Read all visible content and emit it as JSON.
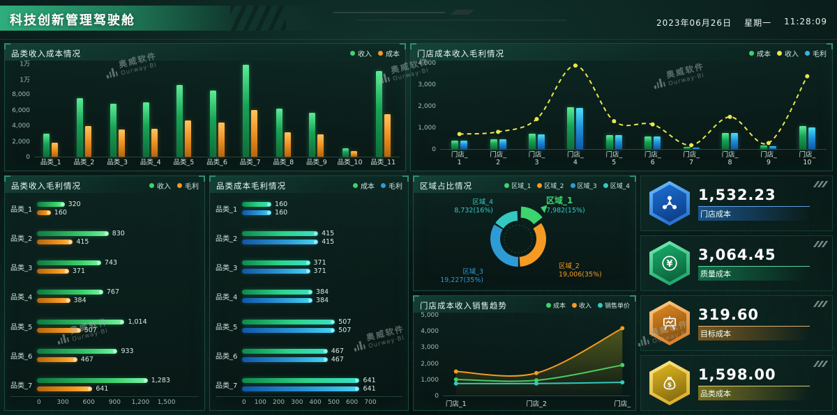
{
  "header": {
    "title": "科技创新管理驾驶舱",
    "date": "2023年06月26日",
    "weekday": "星期一",
    "time": "11:28:09"
  },
  "watermark": {
    "cn": "奥威软件",
    "en": "Ourway·BI"
  },
  "kpis": [
    {
      "value": "1,532.23",
      "label": "门店成本",
      "icon": "network-icon",
      "accent": "#2f8fe8"
    },
    {
      "value": "3,064.45",
      "label": "质量成本",
      "icon": "yen-icon",
      "accent": "#2bd488"
    },
    {
      "value": "319.60",
      "label": "目标成本",
      "icon": "easel-icon",
      "accent": "#f59a3c"
    },
    {
      "value": "1,598.00",
      "label": "品类成本",
      "icon": "moneybag-icon",
      "accent": "#f0cf3a"
    }
  ],
  "chart_data": [
    {
      "id": "category-income-cost",
      "panel_title": "品类收入成本情况",
      "type": "bar",
      "legend": [
        "收入",
        "成本"
      ],
      "legend_colors": [
        "#3bd46f",
        "#f59a23"
      ],
      "categories": [
        "品类_1",
        "品类_2",
        "品类_3",
        "品类_4",
        "品类_5",
        "品类_6",
        "品类_7",
        "品类_8",
        "品类_9",
        "品类_10",
        "品类_11"
      ],
      "series": [
        {
          "name": "收入",
          "color_key": "green",
          "values": [
            3000,
            7500,
            6800,
            7000,
            9200,
            8500,
            11800,
            6200,
            5600,
            1100,
            11000
          ]
        },
        {
          "name": "成本",
          "color_key": "orange",
          "values": [
            1800,
            3900,
            3500,
            3600,
            4700,
            4400,
            6000,
            3100,
            2900,
            700,
            5500
          ]
        }
      ],
      "ylim": [
        0,
        12000
      ],
      "ytick_labels": [
        "0",
        "2,000",
        "4,000",
        "6,000",
        "8,000",
        "1万",
        "1万"
      ]
    },
    {
      "id": "store-cost-income-profit",
      "panel_title": "门店成本收入毛利情况",
      "type": "bar-line",
      "legend": [
        "成本",
        "收入",
        "毛利"
      ],
      "legend_colors": [
        "#3bd46f",
        "#e9e94f",
        "#35b6e0"
      ],
      "categories": [
        "门店_1",
        "门店_2",
        "门店_3",
        "门店_4",
        "门店_5",
        "门店_6",
        "门店_7",
        "门店_8",
        "门店_9",
        "门店_10"
      ],
      "series": [
        {
          "name": "成本",
          "color_key": "green",
          "values": [
            400,
            460,
            700,
            1950,
            660,
            600,
            100,
            760,
            160,
            1060
          ]
        },
        {
          "name": "毛利",
          "color_key": "blue",
          "values": [
            380,
            440,
            680,
            1920,
            640,
            580,
            80,
            740,
            140,
            1000
          ]
        }
      ],
      "line_series": {
        "name": "收入",
        "color": "#e9e94f",
        "values": [
          700,
          800,
          1400,
          3900,
          1300,
          1150,
          180,
          1500,
          280,
          3400
        ]
      },
      "ylim": [
        0,
        4000
      ],
      "ytick_labels": [
        "0",
        "1,000",
        "2,000",
        "3,000",
        "4,000"
      ]
    },
    {
      "id": "category-income-profit",
      "panel_title": "品类收入毛利情况",
      "type": "hbar",
      "legend": [
        "收入",
        "毛利"
      ],
      "legend_colors": [
        "#3bd46f",
        "#f59a23"
      ],
      "categories": [
        "品类_1",
        "品类_2",
        "品类_3",
        "品类_4",
        "品类_5",
        "品类_6",
        "品类_7"
      ],
      "series": [
        {
          "name": "收入",
          "color_key": "hgreen",
          "values": [
            320,
            830,
            743,
            767,
            1014,
            933,
            1283
          ],
          "labels": [
            "320",
            "830",
            "743",
            "767",
            "1,014",
            "933",
            "1,283"
          ]
        },
        {
          "name": "毛利",
          "color_key": "horange",
          "values": [
            160,
            415,
            371,
            384,
            507,
            467,
            641
          ],
          "labels": [
            "160",
            "415",
            "371",
            "384",
            "507",
            "467",
            "641"
          ]
        }
      ],
      "xlim": [
        0,
        1500
      ],
      "xtick_labels": [
        "0",
        "300",
        "600",
        "900",
        "1,200",
        "1,500"
      ]
    },
    {
      "id": "category-cost-profit",
      "panel_title": "品类成本毛利情况",
      "type": "hbar",
      "legend": [
        "成本",
        "毛利"
      ],
      "legend_colors": [
        "#3bd46f",
        "#2e9bd6"
      ],
      "categories": [
        "品类_1",
        "品类_2",
        "品类_3",
        "品类_4",
        "品类_5",
        "品类_6",
        "品类_7"
      ],
      "series": [
        {
          "name": "成本",
          "color_key": "hteal",
          "values": [
            160,
            415,
            371,
            384,
            507,
            467,
            641
          ],
          "labels": [
            "160",
            "415",
            "371",
            "384",
            "507",
            "467",
            "641"
          ]
        },
        {
          "name": "毛利",
          "color_key": "hblue",
          "values": [
            160,
            415,
            371,
            384,
            507,
            467,
            641
          ],
          "labels": [
            "160",
            "415",
            "371",
            "384",
            "507",
            "467",
            "641"
          ]
        }
      ],
      "xlim": [
        0,
        700
      ],
      "xtick_labels": [
        "0",
        "100",
        "200",
        "300",
        "400",
        "500",
        "600",
        "700"
      ]
    },
    {
      "id": "region-share",
      "panel_title": "区域占比情况",
      "type": "donut",
      "legend": [
        "区域_1",
        "区域_2",
        "区域_3",
        "区域_4"
      ],
      "legend_colors": [
        "#3bd46f",
        "#f59a23",
        "#2e9bd6",
        "#35c8c0"
      ],
      "slices": [
        {
          "name": "区域_1",
          "value": 7982,
          "pct": 15,
          "label": "7,982(15%)",
          "color": "#3bd46f",
          "exploded": true
        },
        {
          "name": "区域_2",
          "value": 19006,
          "pct": 35,
          "label": "19,006(35%)",
          "color": "#f59a23"
        },
        {
          "name": "区域_3",
          "value": 19227,
          "pct": 35,
          "label": "19,227(35%)",
          "color": "#2e9bd6"
        },
        {
          "name": "区域_4",
          "value": 8732,
          "pct": 16,
          "label": "8,732(16%)",
          "color": "#35c8c0"
        }
      ]
    },
    {
      "id": "store-trend",
      "panel_title": "门店成本收入销售趋势",
      "type": "line",
      "legend": [
        "成本",
        "收入",
        "销售单价"
      ],
      "legend_colors": [
        "#3bd46f",
        "#f59a23",
        "#35c8c0"
      ],
      "categories": [
        "门店_1",
        "门店_2",
        "门店_"
      ],
      "series": [
        {
          "name": "成本",
          "color": "#3bd46f",
          "values": [
            1000,
            950,
            1900
          ]
        },
        {
          "name": "收入",
          "color": "#f59a23",
          "values": [
            1500,
            1400,
            4200
          ],
          "area": true
        },
        {
          "name": "销售单价",
          "color": "#35c8c0",
          "values": [
            750,
            750,
            820
          ]
        }
      ],
      "ylim": [
        0,
        5000
      ],
      "ytick_labels": [
        "0",
        "1,000",
        "2,000",
        "3,000",
        "4,000",
        "5,000"
      ]
    }
  ]
}
